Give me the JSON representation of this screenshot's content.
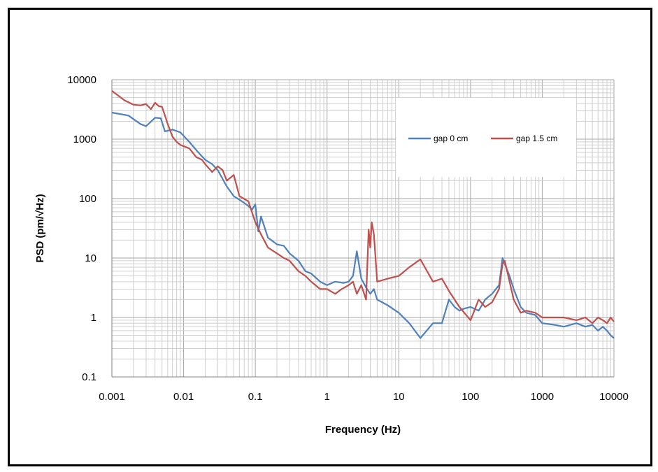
{
  "chart_data": {
    "type": "line",
    "xlabel": "Frequency (Hz)",
    "ylabel": "PSD (pm/√Hz)",
    "x_scale": "log",
    "y_scale": "log",
    "xlim": [
      0.001,
      10000
    ],
    "ylim": [
      0.1,
      10000
    ],
    "x_ticks": [
      0.001,
      0.01,
      0.1,
      1,
      10,
      100,
      1000,
      10000
    ],
    "x_tick_labels": [
      "0.001",
      "0.01",
      "0.1",
      "1",
      "10",
      "100",
      "1000",
      "10000"
    ],
    "y_ticks": [
      0.1,
      1,
      10,
      100,
      1000,
      10000
    ],
    "y_tick_labels": [
      "0.1",
      "1",
      "10",
      "100",
      "1000",
      "10000"
    ],
    "grid": "major and minor",
    "legend_position": "top-right",
    "series": [
      {
        "name": "gap 0 cm",
        "color": "#4f81bd",
        "x": [
          0.001,
          0.0017,
          0.0025,
          0.003,
          0.004,
          0.0048,
          0.0055,
          0.007,
          0.009,
          0.012,
          0.016,
          0.02,
          0.025,
          0.03,
          0.04,
          0.05,
          0.065,
          0.08,
          0.09,
          0.1,
          0.11,
          0.12,
          0.15,
          0.2,
          0.25,
          0.3,
          0.4,
          0.5,
          0.6,
          0.8,
          1,
          1.3,
          1.7,
          2,
          2.3,
          2.6,
          3,
          3.5,
          4,
          4.5,
          5,
          7,
          10,
          14,
          20,
          30,
          40,
          50,
          60,
          70,
          80,
          100,
          130,
          160,
          200,
          250,
          280,
          300,
          350,
          400,
          500,
          600,
          800,
          1000,
          1500,
          2000,
          3000,
          4000,
          5000,
          6000,
          7000,
          8000,
          9000,
          10000
        ],
        "values": [
          2800,
          2500,
          1800,
          1650,
          2300,
          2250,
          1350,
          1450,
          1300,
          900,
          600,
          450,
          380,
          300,
          160,
          110,
          90,
          75,
          65,
          80,
          28,
          50,
          22,
          17,
          16,
          12,
          9,
          6,
          5.5,
          4,
          3.5,
          4,
          3.8,
          4,
          5,
          13,
          4.5,
          3.2,
          2.5,
          3,
          2,
          1.6,
          1.2,
          0.8,
          0.45,
          0.8,
          0.8,
          2,
          1.5,
          1.3,
          1.4,
          1.5,
          1.3,
          2,
          2.5,
          3.5,
          10,
          8,
          5,
          3,
          1.5,
          1.2,
          1.1,
          0.8,
          0.75,
          0.7,
          0.8,
          0.7,
          0.75,
          0.6,
          0.7,
          0.6,
          0.5,
          0.45
        ]
      },
      {
        "name": "gap 1.5 cm",
        "color": "#c0504d",
        "x": [
          0.001,
          0.0015,
          0.002,
          0.0025,
          0.003,
          0.0035,
          0.004,
          0.0045,
          0.005,
          0.0055,
          0.006,
          0.007,
          0.008,
          0.009,
          0.012,
          0.015,
          0.018,
          0.02,
          0.025,
          0.03,
          0.035,
          0.04,
          0.05,
          0.06,
          0.08,
          0.1,
          0.12,
          0.15,
          0.2,
          0.25,
          0.3,
          0.4,
          0.5,
          0.6,
          0.8,
          1,
          1.3,
          1.6,
          2,
          2.3,
          2.6,
          3,
          3.5,
          3.8,
          4,
          4.2,
          4.5,
          5,
          7,
          10,
          14,
          20,
          30,
          40,
          50,
          70,
          100,
          110,
          130,
          160,
          200,
          250,
          280,
          300,
          350,
          400,
          500,
          600,
          800,
          1000,
          1500,
          2000,
          3000,
          4000,
          5000,
          6000,
          7000,
          8000,
          9000,
          10000
        ],
        "values": [
          6500,
          4500,
          3800,
          3700,
          3900,
          3200,
          4100,
          3600,
          3500,
          2500,
          1800,
          1100,
          900,
          800,
          700,
          500,
          450,
          380,
          280,
          350,
          300,
          200,
          250,
          110,
          90,
          40,
          25,
          15,
          12,
          10,
          9,
          6,
          5,
          4,
          3,
          3,
          2.5,
          3,
          3.5,
          4,
          2.5,
          3.5,
          2,
          30,
          15,
          40,
          25,
          4,
          4.5,
          5,
          7,
          9.5,
          4,
          4.5,
          2.8,
          1.5,
          0.9,
          1.2,
          2,
          1.5,
          1.8,
          3,
          8,
          9,
          4,
          2,
          1.2,
          1.3,
          1.2,
          1,
          1,
          1,
          0.9,
          1,
          0.8,
          1,
          0.9,
          0.8,
          1,
          0.85
        ]
      }
    ]
  }
}
